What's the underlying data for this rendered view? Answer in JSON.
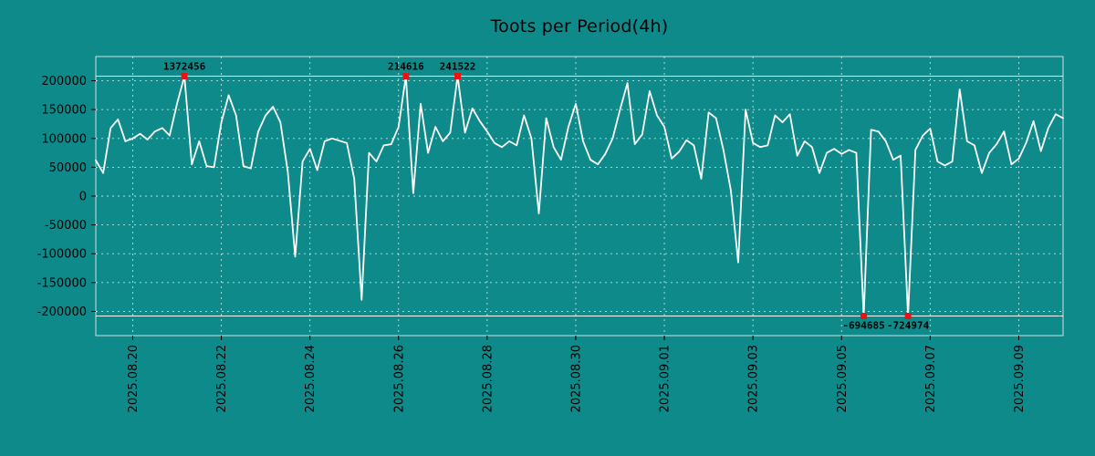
{
  "title": "Toots per Period(4h)",
  "colors": {
    "background": "#0f8a8a",
    "line": "#ffffff",
    "grid": "#ffffff",
    "frame": "#e9f2f2",
    "clip_line": "#ffffff",
    "marker": "#ee1111",
    "text": "#000000",
    "annotation_text": "#000000"
  },
  "chart_data": {
    "type": "line",
    "title": "Toots per Period(4h)",
    "period": "4h",
    "grid": true,
    "legend": null,
    "ylim": [
      -242000,
      242000
    ],
    "clip": [
      -208000,
      208000
    ],
    "y_ticks": [
      200000,
      150000,
      100000,
      50000,
      0,
      -50000,
      -100000,
      -150000,
      -200000
    ],
    "x_tick_labels": [
      "2025.08.20",
      "2025.08.22",
      "2025.08.24",
      "2025.08.26",
      "2025.08.28",
      "2025.08.30",
      "2025.09.01",
      "2025.09.03",
      "2025.09.05",
      "2025.09.07",
      "2025.09.09"
    ],
    "x_tick_indices": [
      5,
      17,
      29,
      41,
      53,
      65,
      77,
      89,
      101,
      113,
      125
    ],
    "points_per_day": 6,
    "values": [
      62000,
      40000,
      118000,
      133000,
      95000,
      100000,
      108000,
      98000,
      112000,
      118000,
      105000,
      160000,
      1372456,
      55000,
      95000,
      52000,
      50000,
      128000,
      175000,
      140000,
      52000,
      48000,
      112000,
      140000,
      155000,
      128000,
      42000,
      -105000,
      60000,
      82000,
      45000,
      95000,
      100000,
      96000,
      92000,
      30000,
      -180000,
      75000,
      60000,
      88000,
      90000,
      120000,
      214616,
      5000,
      160000,
      75000,
      120000,
      95000,
      110000,
      241522,
      110000,
      152000,
      130000,
      112000,
      92000,
      85000,
      95000,
      88000,
      140000,
      100000,
      -30000,
      135000,
      85000,
      63000,
      120000,
      160000,
      95000,
      63000,
      55000,
      73000,
      100000,
      150000,
      196000,
      90000,
      107000,
      182000,
      140000,
      120000,
      65000,
      77000,
      97000,
      88000,
      30000,
      145000,
      135000,
      80000,
      10000,
      -115000,
      150000,
      92000,
      85000,
      88000,
      140000,
      128000,
      142000,
      70000,
      95000,
      85000,
      40000,
      75000,
      82000,
      73000,
      80000,
      75000,
      -694685,
      115000,
      112000,
      95000,
      63000,
      70000,
      -724974,
      80000,
      105000,
      117000,
      60000,
      53000,
      60000,
      185000,
      95000,
      88000,
      40000,
      75000,
      90000,
      112000,
      55000,
      65000,
      92000,
      130000,
      78000,
      118000,
      142000,
      135000
    ],
    "annotations": [
      {
        "index": 12,
        "value": 1372456,
        "label": "1372456",
        "side": "top"
      },
      {
        "index": 42,
        "value": 214616,
        "label": "214616",
        "side": "top"
      },
      {
        "index": 49,
        "value": 241522,
        "label": "241522",
        "side": "top"
      },
      {
        "index": 104,
        "value": -694685,
        "label": "-694685",
        "side": "bottom"
      },
      {
        "index": 110,
        "value": -724974,
        "label": "-724974",
        "side": "bottom"
      }
    ]
  }
}
